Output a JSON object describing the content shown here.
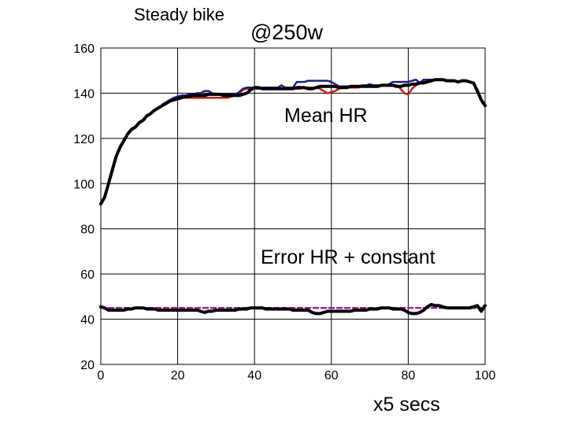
{
  "chart_data": {
    "type": "line",
    "annotations": {
      "steady": "Steady bike",
      "power": "@250w",
      "mean": "Mean HR",
      "error": "Error HR + constant"
    },
    "xlabel": "x5 secs",
    "ylabel": "",
    "xlim": [
      0,
      100
    ],
    "ylim": [
      20,
      160
    ],
    "xticks": [
      "0",
      "20",
      "40",
      "60",
      "80",
      "100"
    ],
    "yticks": [
      "20",
      "40",
      "60",
      "80",
      "100",
      "120",
      "140",
      "160"
    ],
    "grid": true,
    "colors": {
      "blue": "#1a1aa0",
      "red": "#d01818",
      "black": "#000000",
      "dashed": "#a020a0"
    },
    "series": [
      {
        "color": "blue",
        "role": "mean",
        "x": [
          16,
          17,
          18,
          19,
          20,
          21,
          22,
          23,
          24,
          25,
          26,
          27,
          28,
          29,
          30,
          31,
          32,
          33,
          34,
          35,
          36,
          37,
          38,
          39,
          40,
          41,
          42,
          43,
          44,
          45,
          46,
          47,
          48,
          49,
          50,
          51,
          52,
          53,
          54,
          55,
          56,
          57,
          58,
          59,
          60,
          61,
          62,
          63,
          64,
          65,
          66,
          67,
          68,
          69,
          70,
          71,
          72,
          73,
          74,
          75,
          76,
          77,
          78,
          79,
          80,
          81,
          82,
          83,
          84,
          85,
          86
        ],
        "y": [
          135,
          136,
          137,
          138,
          138.5,
          139,
          139,
          139.5,
          139.5,
          140,
          140,
          141,
          141,
          140,
          139.5,
          139.5,
          139.5,
          139.5,
          139.5,
          139.5,
          140.5,
          142,
          142.5,
          142.5,
          142.5,
          142.5,
          142.5,
          142.5,
          142.5,
          142.5,
          142.5,
          143.5,
          142.5,
          142.5,
          142.5,
          145,
          145,
          145,
          145.5,
          145.5,
          145.5,
          145.5,
          145.5,
          145.5,
          145,
          144,
          143,
          143,
          143,
          143,
          143,
          143,
          143.5,
          143.5,
          144,
          143.5,
          143.5,
          143.5,
          143.5,
          144,
          145,
          145,
          145,
          145,
          145,
          145.5,
          146,
          144.5,
          146,
          146,
          146
        ]
      },
      {
        "color": "red",
        "role": "mean",
        "x": [
          16,
          17,
          18,
          19,
          20,
          21,
          22,
          23,
          24,
          25,
          26,
          27,
          28,
          29,
          30,
          31,
          32,
          33,
          34,
          35,
          36,
          37,
          38,
          39,
          40,
          41,
          42,
          43,
          44,
          45,
          46,
          47,
          48,
          49,
          50,
          51,
          52,
          53,
          54,
          55,
          56,
          57,
          58,
          59,
          60,
          61,
          62,
          63,
          64,
          65,
          66,
          67,
          68,
          69,
          70,
          71,
          72,
          73,
          74,
          75,
          76,
          77,
          78,
          79,
          80,
          81,
          82,
          83,
          84,
          85,
          86
        ],
        "y": [
          135,
          136,
          137,
          137.5,
          138,
          138,
          138,
          138,
          138,
          138,
          138,
          138,
          138,
          138,
          138,
          138,
          138,
          138,
          138.5,
          139,
          140,
          141.5,
          142,
          142,
          142,
          142,
          142,
          142,
          142,
          142,
          142,
          142,
          142,
          142,
          142,
          142,
          142,
          142.5,
          142.5,
          142.5,
          142.5,
          142,
          141,
          140,
          140.5,
          141,
          142,
          142.5,
          142.5,
          142.5,
          142.5,
          142.5,
          143,
          143,
          143,
          143.5,
          143.5,
          143.5,
          143.5,
          143.5,
          143.5,
          143.5,
          142,
          140,
          139.5,
          142,
          143.5,
          144.5,
          145,
          145.5,
          146
        ]
      },
      {
        "color": "black",
        "role": "mean",
        "x": [
          0,
          1,
          2,
          3,
          4,
          5,
          6,
          7,
          8,
          9,
          10,
          11,
          12,
          13,
          14,
          15,
          16,
          17,
          18,
          19,
          20,
          21,
          22,
          23,
          24,
          25,
          26,
          27,
          28,
          29,
          30,
          31,
          32,
          33,
          34,
          35,
          36,
          37,
          38,
          39,
          40,
          41,
          42,
          43,
          44,
          45,
          46,
          47,
          48,
          49,
          50,
          51,
          52,
          53,
          54,
          55,
          56,
          57,
          58,
          59,
          60,
          61,
          62,
          63,
          64,
          65,
          66,
          67,
          68,
          69,
          70,
          71,
          72,
          73,
          74,
          75,
          76,
          77,
          78,
          79,
          80,
          81,
          82,
          83,
          84,
          85,
          86,
          87,
          88,
          89,
          90,
          91,
          92,
          93,
          94,
          95,
          96,
          97,
          98,
          99,
          100
        ],
        "y": [
          91,
          94,
          100,
          106,
          112,
          116,
          119,
          122,
          124,
          125,
          127,
          128,
          130,
          131,
          132.5,
          133.5,
          134.5,
          135.5,
          136.5,
          137,
          137.5,
          138,
          138.5,
          138.5,
          139,
          139,
          139,
          139,
          139.5,
          139.5,
          139.5,
          139.5,
          139,
          139,
          139,
          139,
          139,
          139.5,
          140,
          141.5,
          142.5,
          142.5,
          142,
          142,
          142,
          142,
          142,
          142,
          142,
          142,
          142,
          142.5,
          142.5,
          142.5,
          142,
          142,
          142.5,
          143,
          143,
          143,
          143,
          143,
          142.5,
          142.5,
          142.5,
          143,
          143,
          143,
          143,
          143,
          143,
          143,
          143,
          143.5,
          143.5,
          143.5,
          143.5,
          143,
          143,
          143.5,
          143.5,
          144,
          144,
          144.5,
          144.5,
          145,
          145.5,
          146,
          146,
          146,
          145.5,
          145.5,
          145.5,
          145,
          145.5,
          145.5,
          145,
          144.5,
          141,
          137,
          134.5
        ]
      },
      {
        "color": "black",
        "role": "error",
        "x": [
          0,
          1,
          2,
          3,
          4,
          5,
          6,
          7,
          8,
          9,
          10,
          11,
          12,
          13,
          14,
          15,
          16,
          17,
          18,
          19,
          20,
          21,
          22,
          23,
          24,
          25,
          26,
          27,
          28,
          29,
          30,
          31,
          32,
          33,
          34,
          35,
          36,
          37,
          38,
          39,
          40,
          41,
          42,
          43,
          44,
          45,
          46,
          47,
          48,
          49,
          50,
          51,
          52,
          53,
          54,
          55,
          56,
          57,
          58,
          59,
          60,
          61,
          62,
          63,
          64,
          65,
          66,
          67,
          68,
          69,
          70,
          71,
          72,
          73,
          74,
          75,
          76,
          77,
          78,
          79,
          80,
          81,
          82,
          83,
          84,
          85,
          86,
          87,
          88,
          89,
          90,
          91,
          92,
          93,
          94,
          95,
          96,
          97,
          98,
          99,
          100
        ],
        "y": [
          45.5,
          45,
          44,
          44,
          44,
          44,
          44,
          44.5,
          44.5,
          45,
          45,
          45,
          44.5,
          44.5,
          44.5,
          44,
          44,
          44,
          44,
          44,
          44,
          44,
          44,
          44,
          44,
          44,
          43.5,
          43,
          43.5,
          43.5,
          44,
          44,
          44,
          44,
          44,
          44,
          44.5,
          44.5,
          44.5,
          45,
          45,
          45,
          45,
          44.5,
          44.5,
          44.5,
          44.5,
          44.5,
          44.5,
          44.5,
          44,
          44,
          44,
          44,
          44,
          43,
          42.5,
          42.5,
          43,
          43.5,
          43.5,
          43.5,
          43.5,
          43.5,
          43.5,
          43.5,
          44,
          44,
          44,
          44,
          44.5,
          44.5,
          44.5,
          45,
          45,
          45,
          44.5,
          44.5,
          44.5,
          44,
          43,
          42.5,
          42.5,
          43,
          44,
          45.5,
          46.5,
          46,
          46,
          45.5,
          45,
          45,
          45,
          45,
          45,
          45,
          45,
          45.5,
          46,
          43.5,
          46
        ]
      },
      {
        "color": "dashed",
        "role": "constant",
        "x": [
          0,
          100
        ],
        "y": [
          45,
          45
        ]
      }
    ]
  }
}
